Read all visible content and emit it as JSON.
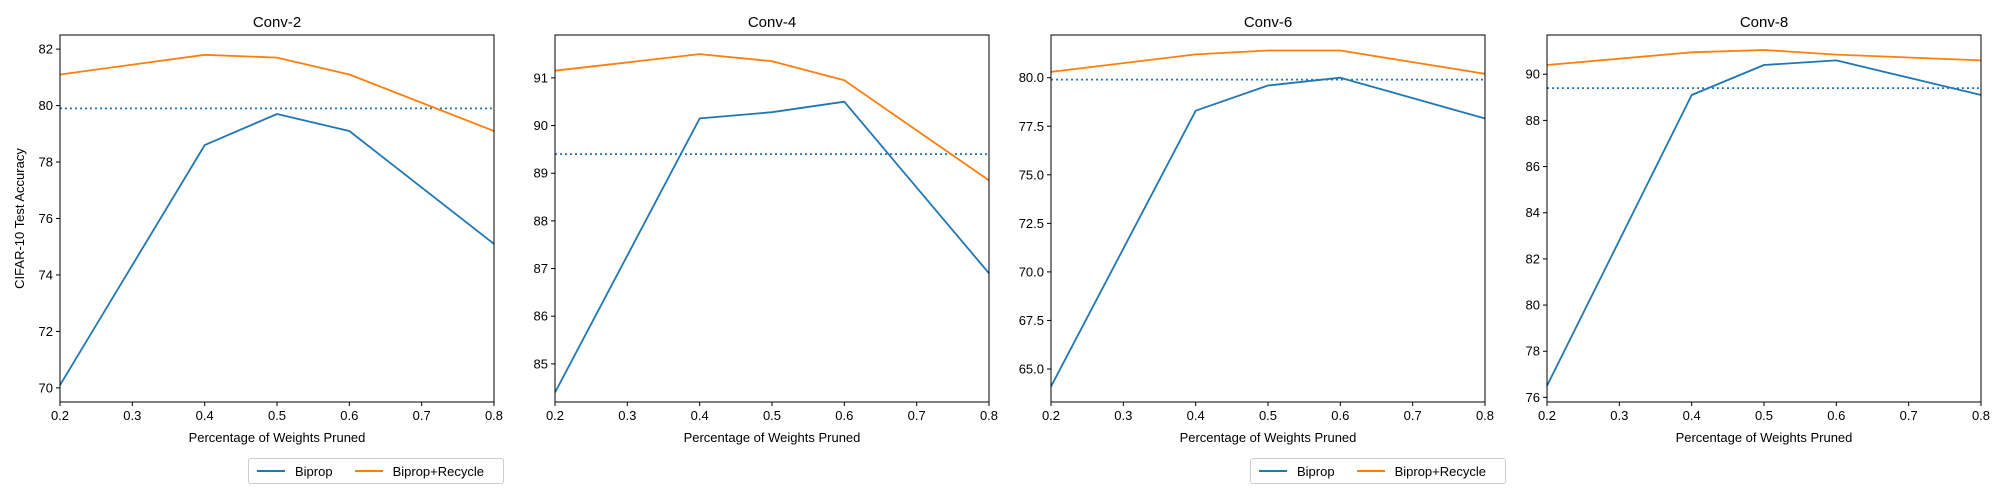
{
  "colors": {
    "biprop": "#1f77b4",
    "recycle": "#ff7f0e",
    "baseline": "#1f77b4"
  },
  "legend": [
    {
      "name": "Biprop",
      "color": "#1f77b4"
    },
    {
      "name": "Biprop+Recycle",
      "color": "#ff7f0e"
    }
  ],
  "chart_data": [
    {
      "type": "line",
      "title": "Conv-2",
      "xlabel": "Percentage of Weights Pruned",
      "ylabel": "CIFAR-10 Test Accuracy",
      "x": [
        0.2,
        0.4,
        0.5,
        0.6,
        0.8
      ],
      "xlim": [
        0.2,
        0.8
      ],
      "xticks": [
        "0.2",
        "0.3",
        "0.4",
        "0.5",
        "0.6",
        "0.7",
        "0.8"
      ],
      "ylim": [
        69.5,
        82.5
      ],
      "yticks": [
        "70",
        "72",
        "74",
        "76",
        "78",
        "80",
        "82"
      ],
      "series": [
        {
          "name": "Biprop",
          "values": [
            70.1,
            78.6,
            79.7,
            79.1,
            75.1
          ]
        },
        {
          "name": "Biprop+Recycle",
          "values": [
            81.1,
            81.8,
            81.7,
            81.1,
            79.1
          ]
        }
      ],
      "baseline": 79.9
    },
    {
      "type": "line",
      "title": "Conv-4",
      "xlabel": "Percentage of Weights Pruned",
      "ylabel": "",
      "x": [
        0.2,
        0.4,
        0.5,
        0.6,
        0.8
      ],
      "xlim": [
        0.2,
        0.8
      ],
      "xticks": [
        "0.2",
        "0.3",
        "0.4",
        "0.5",
        "0.6",
        "0.7",
        "0.8"
      ],
      "ylim": [
        84.2,
        91.9
      ],
      "yticks": [
        "85",
        "86",
        "87",
        "88",
        "89",
        "90",
        "91"
      ],
      "series": [
        {
          "name": "Biprop",
          "values": [
            84.4,
            90.15,
            90.28,
            90.5,
            86.9
          ]
        },
        {
          "name": "Biprop+Recycle",
          "values": [
            91.15,
            91.5,
            91.35,
            90.95,
            88.85
          ]
        }
      ],
      "baseline": 89.4
    },
    {
      "type": "line",
      "title": "Conv-6",
      "xlabel": "Percentage of Weights Pruned",
      "ylabel": "",
      "x": [
        0.2,
        0.4,
        0.5,
        0.6,
        0.8
      ],
      "xlim": [
        0.2,
        0.8
      ],
      "xticks": [
        "0.2",
        "0.3",
        "0.4",
        "0.5",
        "0.6",
        "0.7",
        "0.8"
      ],
      "ylim": [
        63.3,
        82.2
      ],
      "yticks": [
        "65.0",
        "67.5",
        "70.0",
        "72.5",
        "75.0",
        "77.5",
        "80.0"
      ],
      "series": [
        {
          "name": "Biprop",
          "values": [
            64.1,
            78.3,
            79.6,
            80.0,
            77.9
          ]
        },
        {
          "name": "Biprop+Recycle",
          "values": [
            80.3,
            81.2,
            81.4,
            81.4,
            80.2
          ]
        }
      ],
      "baseline": 79.9
    },
    {
      "type": "line",
      "title": "Conv-8",
      "xlabel": "Percentage of Weights Pruned",
      "ylabel": "",
      "x": [
        0.2,
        0.4,
        0.5,
        0.6,
        0.8
      ],
      "xlim": [
        0.2,
        0.8
      ],
      "xticks": [
        "0.2",
        "0.3",
        "0.4",
        "0.5",
        "0.6",
        "0.7",
        "0.8"
      ],
      "ylim": [
        75.8,
        91.7
      ],
      "yticks": [
        "76",
        "78",
        "80",
        "82",
        "84",
        "86",
        "88",
        "90"
      ],
      "series": [
        {
          "name": "Biprop",
          "values": [
            76.5,
            89.1,
            90.4,
            90.6,
            89.1
          ]
        },
        {
          "name": "Biprop+Recycle",
          "values": [
            90.4,
            90.95,
            91.05,
            90.85,
            90.6
          ]
        }
      ],
      "baseline": 89.4
    }
  ]
}
